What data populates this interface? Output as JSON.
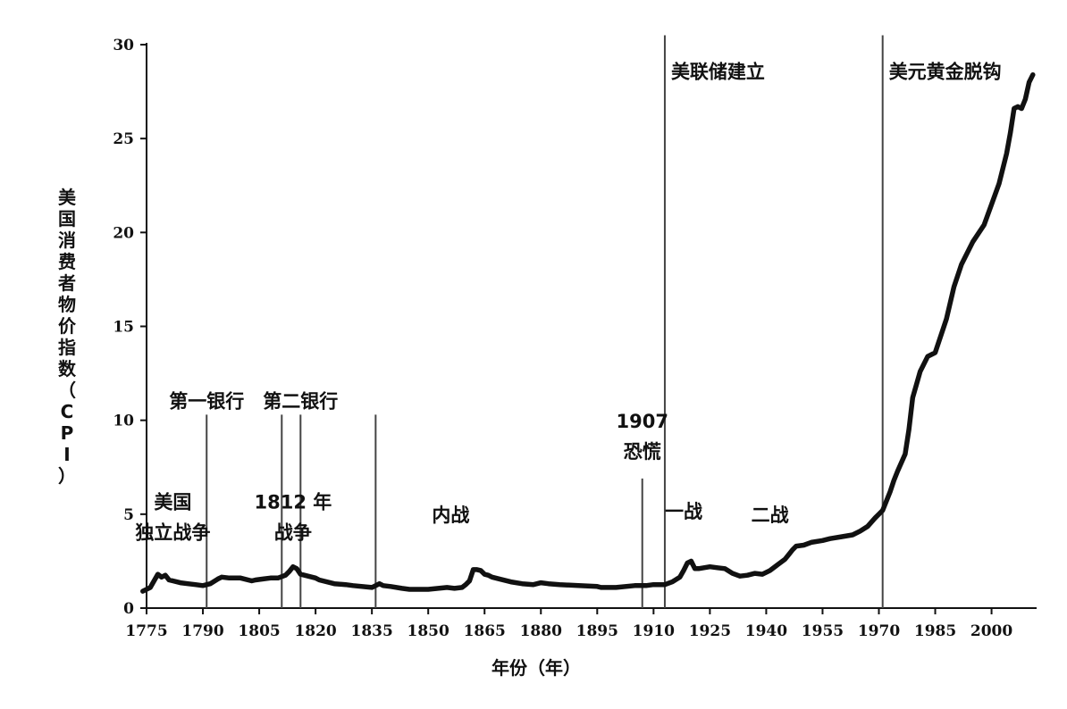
{
  "chart_data": {
    "type": "line",
    "title": "",
    "xlabel": "年份（年）",
    "ylabel": "美国消费者物价指数（CPI）",
    "xlim": [
      1775,
      2012
    ],
    "ylim": [
      0,
      30
    ],
    "x_ticks": [
      1775,
      1790,
      1805,
      1820,
      1835,
      1850,
      1865,
      1880,
      1895,
      1910,
      1925,
      1940,
      1955,
      1970,
      1985,
      2000
    ],
    "y_ticks": [
      0,
      5,
      10,
      15,
      20,
      25,
      30
    ],
    "grid": false,
    "legend": "none",
    "line_color": "#111111",
    "series": [
      {
        "x": [
          1774,
          1776,
          1778,
          1779,
          1780,
          1781,
          1782,
          1784,
          1786,
          1788,
          1790,
          1792,
          1794,
          1795,
          1797,
          1800,
          1803,
          1804,
          1806,
          1808,
          1810,
          1812,
          1813,
          1814,
          1815,
          1816,
          1818,
          1820,
          1821,
          1825,
          1828,
          1830,
          1835,
          1836,
          1837,
          1838,
          1840,
          1843,
          1845,
          1849,
          1850,
          1855,
          1857,
          1859,
          1860,
          1861,
          1862,
          1863,
          1864,
          1865,
          1866,
          1867,
          1869,
          1872,
          1875,
          1878,
          1880,
          1882,
          1885,
          1890,
          1895,
          1896,
          1900,
          1905,
          1908,
          1910,
          1913,
          1915,
          1917,
          1918,
          1919,
          1920,
          1921,
          1922,
          1925,
          1927,
          1929,
          1931,
          1933,
          1935,
          1937,
          1939,
          1941,
          1943,
          1945,
          1946,
          1947,
          1948,
          1950,
          1952,
          1955,
          1957,
          1960,
          1963,
          1965,
          1967,
          1969,
          1970,
          1971,
          1973,
          1974,
          1975,
          1977,
          1978,
          1979,
          1980,
          1981,
          1983,
          1985,
          1987,
          1988,
          1990,
          1992,
          1995,
          1998,
          2000,
          2002,
          2004,
          2005,
          2006,
          2007,
          2008,
          2009,
          2010,
          2011
        ],
        "values": [
          0.9,
          1.1,
          1.8,
          1.65,
          1.75,
          1.5,
          1.45,
          1.35,
          1.3,
          1.25,
          1.2,
          1.3,
          1.55,
          1.65,
          1.6,
          1.6,
          1.45,
          1.5,
          1.55,
          1.6,
          1.6,
          1.75,
          1.95,
          2.2,
          2.1,
          1.8,
          1.7,
          1.6,
          1.5,
          1.3,
          1.25,
          1.2,
          1.1,
          1.2,
          1.3,
          1.2,
          1.15,
          1.05,
          1.0,
          1.0,
          1.0,
          1.1,
          1.05,
          1.1,
          1.25,
          1.45,
          2.05,
          2.05,
          2.0,
          1.8,
          1.75,
          1.65,
          1.55,
          1.4,
          1.3,
          1.25,
          1.35,
          1.3,
          1.25,
          1.2,
          1.15,
          1.1,
          1.1,
          1.2,
          1.2,
          1.25,
          1.25,
          1.4,
          1.65,
          2.0,
          2.4,
          2.5,
          2.1,
          2.1,
          2.2,
          2.15,
          2.1,
          1.85,
          1.7,
          1.75,
          1.85,
          1.8,
          2.0,
          2.3,
          2.6,
          2.85,
          3.1,
          3.3,
          3.35,
          3.5,
          3.6,
          3.7,
          3.8,
          3.9,
          4.1,
          4.35,
          4.8,
          5.0,
          5.2,
          6.2,
          6.8,
          7.3,
          8.2,
          9.5,
          11.2,
          11.9,
          12.6,
          13.4,
          13.6,
          14.8,
          15.4,
          17.1,
          18.3,
          19.5,
          20.4,
          21.5,
          22.6,
          24.2,
          25.3,
          26.6,
          26.7,
          26.6,
          27.1,
          28.0,
          28.4
        ]
      }
    ],
    "event_lines": [
      {
        "year": 1791,
        "label": "第一银行",
        "y_top": 10.3
      },
      {
        "year": 1811,
        "label": "",
        "y_top": 10.3
      },
      {
        "year": 1816,
        "label": "第二银行",
        "y_top": 10.3
      },
      {
        "year": 1836,
        "label": "",
        "y_top": 10.3
      },
      {
        "year": 1907,
        "label": "",
        "y_top": 6.9
      },
      {
        "year": 1913,
        "label": "美联储建立",
        "y_top": 30.5
      },
      {
        "year": 1971,
        "label": "美元黄金脱钩",
        "y_top": 30.5
      }
    ],
    "annotations": [
      {
        "lines": [
          "美国",
          "独立战争"
        ],
        "x": 1782,
        "y": 5.3
      },
      {
        "lines": [
          "1812 年",
          "战争"
        ],
        "x": 1814,
        "y": 5.3
      },
      {
        "lines": [
          "1907",
          "恐慌"
        ],
        "x": 1907,
        "y": 9.6
      },
      {
        "lines": [
          "内战"
        ],
        "x": 1856,
        "y": 4.6
      },
      {
        "lines": [
          "一战"
        ],
        "x": 1918,
        "y": 4.8
      },
      {
        "lines": [
          "二战"
        ],
        "x": 1941,
        "y": 4.6
      }
    ]
  }
}
